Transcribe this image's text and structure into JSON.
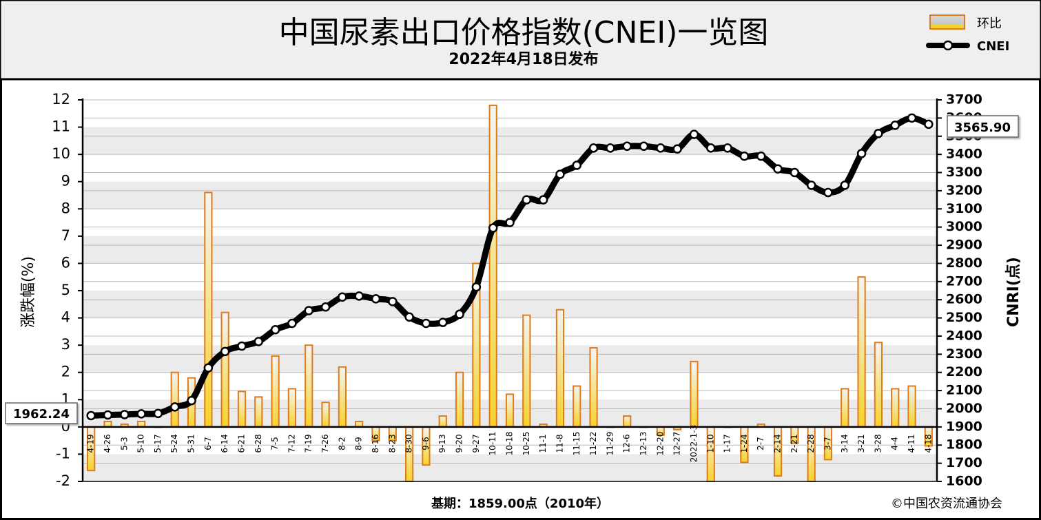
{
  "header": {
    "title": "中国尿素出口价格指数(CNEI)一览图",
    "subtitle": "2022年4月18日发布"
  },
  "legend": {
    "bar_label": "环比",
    "line_label": "CNEI"
  },
  "footer": {
    "base": "基期：1859.00点（2010年）",
    "copyright": "©中国农资流通协会"
  },
  "callouts": {
    "start_value": "1962.24",
    "end_value": "3565.90"
  },
  "colors": {
    "bar_stroke": "#e07b1c",
    "bar_fill_top": "#f4f4f4",
    "bar_fill_bottom": "#f7d22b",
    "line": "#000000",
    "marker_fill": "#ffffff",
    "grid": "#b9b9b9",
    "band": "#ebebeb"
  },
  "chart_data": {
    "type": "bar+line",
    "title": "中国尿素出口价格指数(CNEI)一览图",
    "subtitle": "2022年4月18日发布",
    "ylabel_left": "涨跌幅(%)",
    "ylabel_right": "CNRI(点)",
    "ylim_left": [
      -2,
      12
    ],
    "ylim_right": [
      1600,
      3700
    ],
    "yticks_left": [
      -2,
      -1,
      0,
      1,
      2,
      3,
      4,
      5,
      6,
      7,
      8,
      9,
      10,
      11,
      12
    ],
    "yticks_right": [
      1600,
      1700,
      1800,
      1900,
      2000,
      2100,
      2200,
      2300,
      2400,
      2500,
      2600,
      2700,
      2800,
      2900,
      3000,
      3100,
      3200,
      3300,
      3400,
      3500,
      3600,
      3700
    ],
    "grid": true,
    "legend_position": "top-right",
    "categories": [
      "4-19",
      "4-26",
      "5-3",
      "5-10",
      "5-17",
      "5-24",
      "5-31",
      "6-7",
      "6-14",
      "6-21",
      "6-28",
      "7-5",
      "7-12",
      "7-19",
      "7-26",
      "8-2",
      "8-9",
      "8-16",
      "8-23",
      "8-30",
      "9-6",
      "9-13",
      "9-20",
      "9-27",
      "10-11",
      "10-18",
      "10-25",
      "11-1",
      "11-8",
      "11-15",
      "11-22",
      "11-29",
      "12-6",
      "12-13",
      "12-20",
      "12-27",
      "2022-1-3",
      "1-10",
      "1-17",
      "1-24",
      "2-7",
      "2-14",
      "2-21",
      "2-28",
      "3-7",
      "3-14",
      "3-21",
      "3-28",
      "4-4",
      "4-11",
      "4-18"
    ],
    "series": [
      {
        "name": "环比",
        "type": "bar",
        "axis": "left",
        "values": [
          -1.6,
          0.2,
          0.1,
          0.2,
          0.0,
          2.0,
          1.8,
          8.6,
          4.2,
          1.3,
          1.1,
          2.6,
          1.4,
          3.0,
          0.9,
          2.2,
          0.2,
          -0.5,
          -0.5,
          -2.0,
          -1.4,
          0.4,
          2.0,
          6.0,
          11.8,
          1.2,
          4.1,
          0.1,
          4.3,
          1.5,
          2.9,
          0.0,
          0.4,
          0.0,
          -0.3,
          -0.1,
          2.4,
          -2.0,
          0.0,
          -1.3,
          0.1,
          -1.8,
          -0.6,
          -2.0,
          -1.2,
          1.4,
          5.5,
          3.1,
          1.4,
          1.5,
          -0.7
        ]
      },
      {
        "name": "CNEI",
        "type": "line",
        "axis": "right",
        "values": [
          1962.24,
          1966,
          1968,
          1972,
          1974,
          2010,
          2045,
          2225,
          2315,
          2345,
          2370,
          2435,
          2470,
          2540,
          2560,
          2615,
          2620,
          2605,
          2590,
          2505,
          2470,
          2475,
          2520,
          2670,
          2995,
          3025,
          3150,
          3150,
          3290,
          3340,
          3435,
          3435,
          3445,
          3445,
          3435,
          3430,
          3510,
          3435,
          3435,
          3390,
          3390,
          3320,
          3300,
          3230,
          3190,
          3230,
          3405,
          3515,
          3560,
          3600,
          3565.9
        ]
      }
    ]
  }
}
